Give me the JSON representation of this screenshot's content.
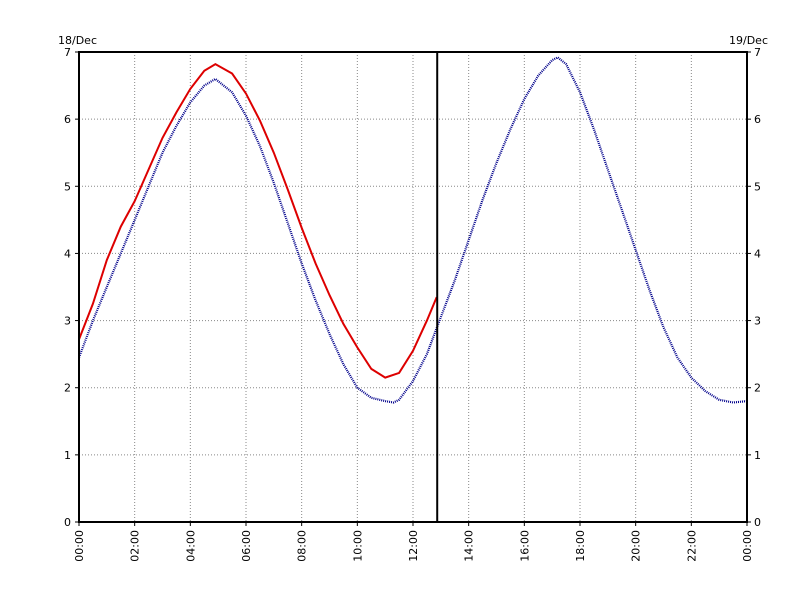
{
  "chart_data": {
    "type": "line",
    "date_left": "18/Dec",
    "date_right": "19/Dec",
    "x_unit": "hours",
    "xlim": [
      0,
      24
    ],
    "ylim": [
      0,
      7
    ],
    "y_ticks": [
      0,
      1,
      2,
      3,
      4,
      5,
      6,
      7
    ],
    "y_tick_labels": [
      "0",
      "1",
      "2",
      "3",
      "4",
      "5",
      "6",
      "7"
    ],
    "x_ticks": [
      0,
      2,
      4,
      6,
      8,
      10,
      12,
      14,
      16,
      18,
      20,
      22,
      24
    ],
    "x_tick_labels": [
      "00:00",
      "02:00",
      "04:00",
      "06:00",
      "08:00",
      "10:00",
      "12:00",
      "14:00",
      "16:00",
      "18:00",
      "20:00",
      "22:00",
      "00:00"
    ],
    "grid": true,
    "current_time": 12.87,
    "colors": {
      "observed": "#dd0000",
      "predicted": "#00008b",
      "grid": "#888888",
      "axis": "#000000"
    },
    "series": [
      {
        "key": "observed",
        "style": "solid",
        "x": [
          0,
          0.5,
          1,
          1.5,
          2,
          2.5,
          3,
          3.5,
          4,
          4.5,
          4.9,
          5.5,
          6,
          6.5,
          7,
          7.5,
          8,
          8.5,
          9,
          9.5,
          10,
          10.5,
          11,
          11.5,
          12,
          12.5,
          12.85
        ],
        "y": [
          2.72,
          3.25,
          3.9,
          4.4,
          4.78,
          5.25,
          5.72,
          6.1,
          6.45,
          6.72,
          6.82,
          6.68,
          6.38,
          5.98,
          5.5,
          4.95,
          4.38,
          3.85,
          3.38,
          2.95,
          2.6,
          2.28,
          2.15,
          2.22,
          2.55,
          3.0,
          3.35
        ]
      },
      {
        "key": "predicted",
        "style": "dotted",
        "x": [
          0,
          0.5,
          1,
          1.5,
          2,
          2.5,
          3,
          3.5,
          4,
          4.5,
          4.9,
          5.5,
          6,
          6.5,
          7,
          7.5,
          8,
          8.5,
          9,
          9.5,
          10,
          10.5,
          11,
          11.3,
          11.5,
          12,
          12.5,
          13,
          13.5,
          14,
          14.5,
          15,
          15.5,
          16,
          16.5,
          17,
          17.2,
          17.5,
          18,
          18.5,
          19,
          19.5,
          20,
          20.5,
          21,
          21.5,
          22,
          22.5,
          23,
          23.5,
          24
        ],
        "y": [
          2.45,
          3.0,
          3.5,
          4.0,
          4.5,
          5.0,
          5.5,
          5.9,
          6.25,
          6.5,
          6.6,
          6.4,
          6.05,
          5.6,
          5.05,
          4.45,
          3.85,
          3.3,
          2.8,
          2.35,
          2.0,
          1.85,
          1.8,
          1.78,
          1.82,
          2.1,
          2.5,
          3.05,
          3.6,
          4.2,
          4.8,
          5.35,
          5.85,
          6.3,
          6.65,
          6.88,
          6.92,
          6.82,
          6.4,
          5.85,
          5.25,
          4.65,
          4.05,
          3.45,
          2.9,
          2.45,
          2.15,
          1.95,
          1.82,
          1.78,
          1.8
        ]
      }
    ]
  }
}
